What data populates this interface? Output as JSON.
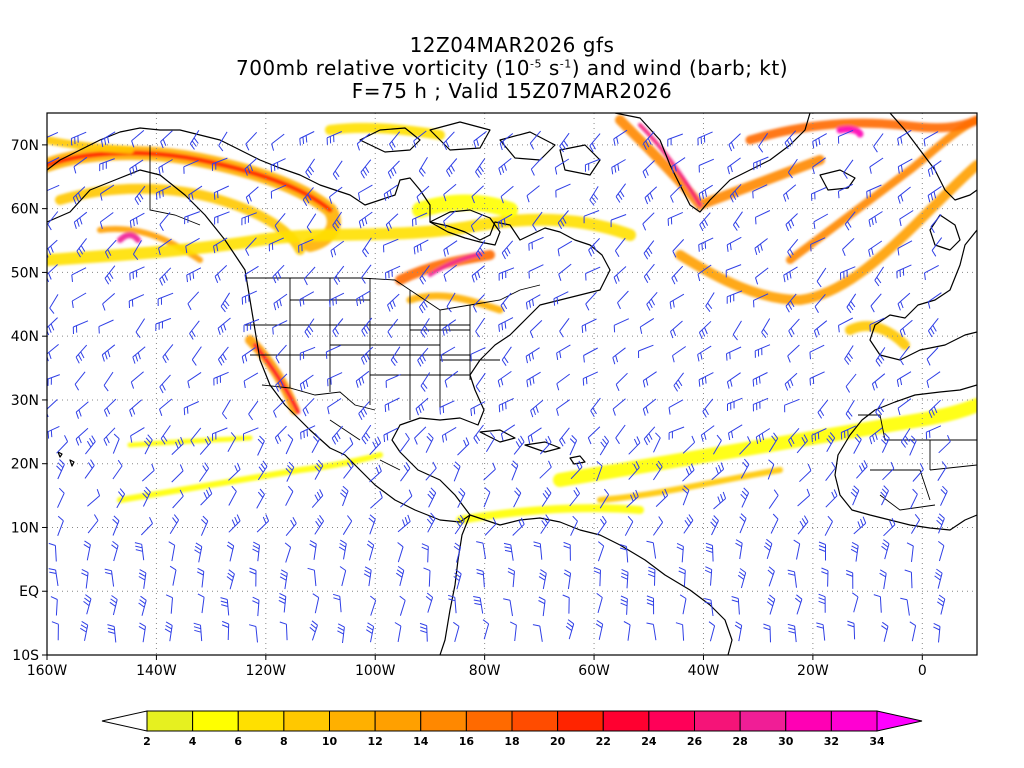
{
  "title": {
    "line1": "12Z04MAR2026 gfs",
    "line2_pre": "700mb relative vorticity (10",
    "line2_exp1": "-5",
    "line2_mid": " s",
    "line2_exp2": "-1",
    "line2_post": ") and wind (barb; kt)",
    "line3": "F=75 h ; Valid 15Z07MAR2026"
  },
  "map": {
    "lon_range": [
      -160,
      10
    ],
    "lat_range": [
      -10,
      75
    ],
    "lon_ticks": [
      {
        "value": -160,
        "label": "160W"
      },
      {
        "value": -140,
        "label": "140W"
      },
      {
        "value": -120,
        "label": "120W"
      },
      {
        "value": -100,
        "label": "100W"
      },
      {
        "value": -80,
        "label": "80W"
      },
      {
        "value": -60,
        "label": "60W"
      },
      {
        "value": -40,
        "label": "40W"
      },
      {
        "value": -20,
        "label": "20W"
      },
      {
        "value": 0,
        "label": "0"
      }
    ],
    "lat_ticks": [
      {
        "value": 70,
        "label": "70N"
      },
      {
        "value": 60,
        "label": "60N"
      },
      {
        "value": 50,
        "label": "50N"
      },
      {
        "value": 40,
        "label": "40N"
      },
      {
        "value": 30,
        "label": "30N"
      },
      {
        "value": 20,
        "label": "20N"
      },
      {
        "value": 10,
        "label": "10N"
      },
      {
        "value": 0,
        "label": "EQ"
      },
      {
        "value": -10,
        "label": "10S"
      }
    ],
    "barb_color": "#2f3fe6",
    "coast_color": "#000000",
    "grid_style": "dotted"
  },
  "colorbar": {
    "levels": [
      "2",
      "4",
      "6",
      "8",
      "10",
      "12",
      "14",
      "16",
      "18",
      "20",
      "22",
      "24",
      "26",
      "28",
      "30",
      "32",
      "34"
    ],
    "colors": [
      "#e6f020",
      "#ffff00",
      "#ffe000",
      "#ffc800",
      "#ffb000",
      "#ffa000",
      "#ff8800",
      "#ff6a00",
      "#ff4c00",
      "#ff2400",
      "#ff0030",
      "#ff0058",
      "#f51478",
      "#f01e96",
      "#ff00b4",
      "#ff00d2"
    ],
    "under_color": "#ffffff",
    "over_color": "#ff00ff"
  }
}
